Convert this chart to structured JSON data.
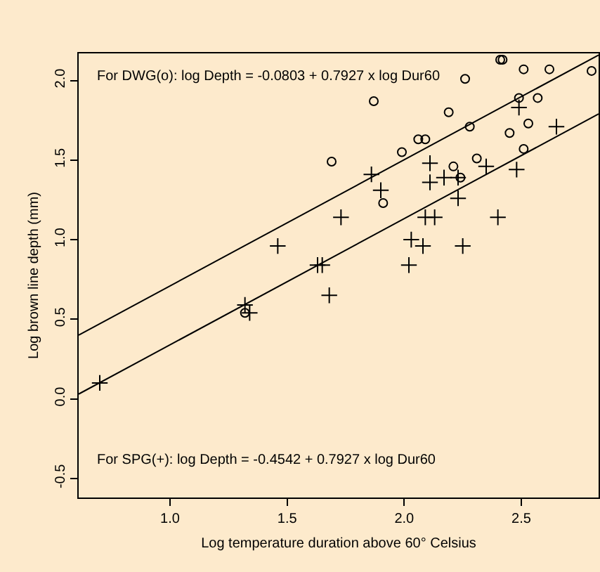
{
  "chart_data": {
    "type": "scatter",
    "xlabel": "Log temperature duration above 60° Celsius",
    "ylabel": "Log brown line depth (mm)",
    "annotations": [
      "For DWG(o): log Depth = -0.0803 + 0.7927 x log Dur60",
      "For SPG(+): log Depth = -0.4542 + 0.7927 x log Dur60"
    ],
    "xlim": [
      0.61,
      2.83
    ],
    "ylim": [
      -0.62,
      2.17
    ],
    "xticks": [
      {
        "value": 1.0,
        "label": "1.0"
      },
      {
        "value": 1.5,
        "label": "1.5"
      },
      {
        "value": 2.0,
        "label": "2.0"
      },
      {
        "value": 2.5,
        "label": "2.5"
      }
    ],
    "yticks": [
      {
        "value": -0.5,
        "label": "-0.5"
      },
      {
        "value": 0.0,
        "label": "0.0"
      },
      {
        "value": 0.5,
        "label": "0.5"
      },
      {
        "value": 1.0,
        "label": "1.0"
      },
      {
        "value": 1.5,
        "label": "1.5"
      },
      {
        "value": 2.0,
        "label": "2.0"
      }
    ],
    "grid": false,
    "series": [
      {
        "marker": "circle",
        "color": "#000000",
        "x": [
          1.32,
          1.69,
          1.87,
          1.99,
          2.06,
          2.09,
          1.91,
          2.19,
          2.26,
          2.21,
          2.24,
          2.28,
          2.31,
          2.41,
          2.42,
          2.51,
          2.62,
          2.45,
          2.49,
          2.57,
          2.53,
          2.51,
          2.8
        ],
        "values": [
          0.54,
          1.49,
          1.87,
          1.55,
          1.63,
          1.63,
          1.23,
          1.8,
          2.01,
          1.46,
          1.39,
          1.71,
          1.51,
          2.13,
          2.13,
          2.07,
          2.07,
          1.67,
          1.89,
          1.89,
          1.73,
          1.57,
          2.06
        ]
      },
      {
        "marker": "cross",
        "color": "#000000",
        "x": [
          0.7,
          1.32,
          1.34,
          1.46,
          1.63,
          1.65,
          1.68,
          1.86,
          1.9,
          1.73,
          2.11,
          2.11,
          2.17,
          2.23,
          2.23,
          2.09,
          2.13,
          2.03,
          2.08,
          2.02,
          2.25,
          2.35,
          2.4,
          2.48,
          2.49,
          2.65
        ],
        "values": [
          0.1,
          0.59,
          0.54,
          0.96,
          0.84,
          0.84,
          0.65,
          1.41,
          1.31,
          1.14,
          1.48,
          1.36,
          1.39,
          1.39,
          1.26,
          1.14,
          1.14,
          1.0,
          0.96,
          0.84,
          0.96,
          1.46,
          1.14,
          1.44,
          1.83,
          1.71
        ]
      },
      {
        "type": "line",
        "marker": "none",
        "color": "#000000",
        "x": [
          0.61,
          2.83
        ],
        "values": [
          0.4,
          2.16
        ]
      },
      {
        "type": "line",
        "marker": "none",
        "color": "#000000",
        "x": [
          0.61,
          2.83
        ],
        "values": [
          0.03,
          1.79
        ]
      }
    ]
  }
}
